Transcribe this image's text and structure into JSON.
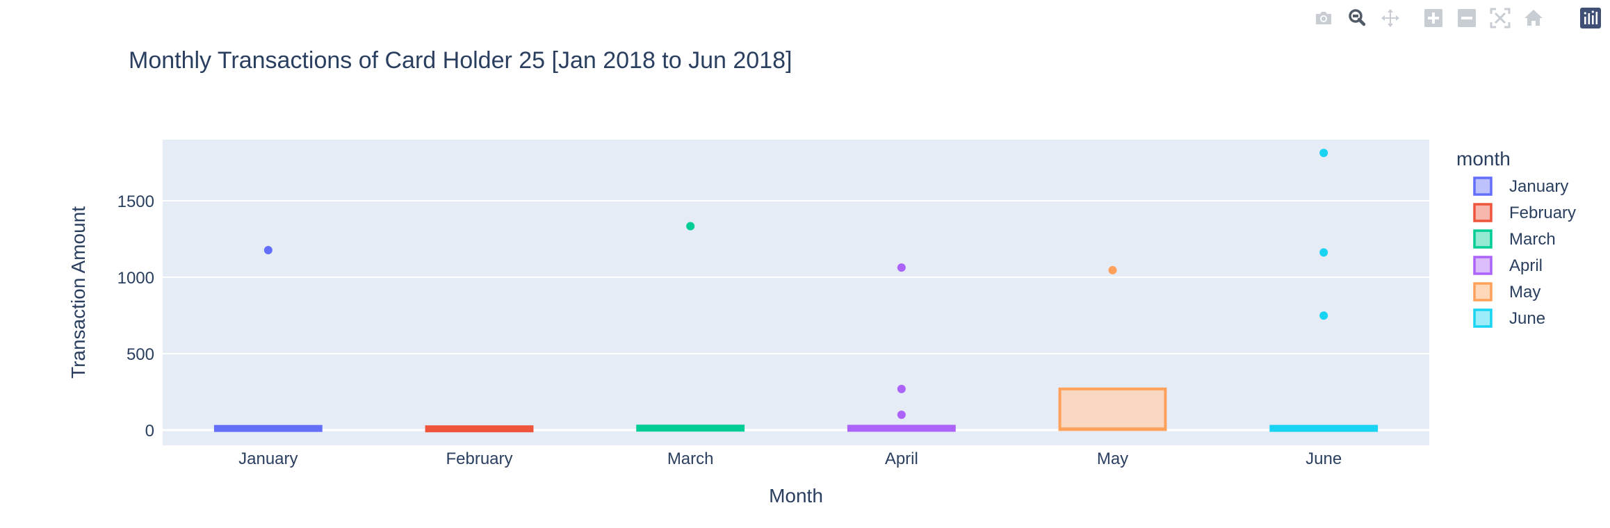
{
  "chart_data": {
    "type": "box",
    "title": "Monthly Transactions of Card Holder 25 [Jan 2018 to Jun 2018]",
    "xlabel": "Month",
    "ylabel": "Transaction Amount",
    "ylim": [
      -100,
      1900
    ],
    "yticks": [
      0,
      500,
      1000,
      1500
    ],
    "ytick_labels": [
      "0",
      "500",
      "1000",
      "1500"
    ],
    "grid": true,
    "legend": {
      "title": "month",
      "position": "right"
    },
    "categories": [
      "January",
      "February",
      "March",
      "April",
      "May",
      "June"
    ],
    "series": [
      {
        "name": "January",
        "color": "#636efa",
        "fill": "#b1b6fc",
        "box": {
          "q1": 3,
          "median": 10,
          "q3": 18,
          "whisker_low": 1,
          "whisker_high": 25
        },
        "outliers": [
          1177
        ]
      },
      {
        "name": "February",
        "color": "#EF553B",
        "fill": "#f7aa9d",
        "box": {
          "q1": 2,
          "median": 8,
          "q3": 14,
          "whisker_low": 1,
          "whisker_high": 20
        },
        "outliers": []
      },
      {
        "name": "March",
        "color": "#00cc96",
        "fill": "#80e5ca",
        "box": {
          "q1": 5,
          "median": 12,
          "q3": 20,
          "whisker_low": 1,
          "whisker_high": 25
        },
        "outliers": [
          1334
        ]
      },
      {
        "name": "April",
        "color": "#ab63fa",
        "fill": "#d5b1fc",
        "box": {
          "q1": 4,
          "median": 11,
          "q3": 19,
          "whisker_low": 1,
          "whisker_high": 25
        },
        "outliers": [
          1063,
          269,
          100
        ]
      },
      {
        "name": "May",
        "color": "#FFA15A",
        "fill": "#ffd0ad",
        "box": {
          "q1": 3,
          "median": 8,
          "q3": 269,
          "whisker_low": 1,
          "whisker_high": 269
        },
        "outliers": [
          1046
        ]
      },
      {
        "name": "June",
        "color": "#19d3f3",
        "fill": "#8ce9f9",
        "box": {
          "q1": 4,
          "median": 10,
          "q3": 18,
          "whisker_low": 1,
          "whisker_high": 25
        },
        "outliers": [
          1813,
          1162,
          749
        ]
      }
    ]
  },
  "modebar": {
    "buttons": [
      "camera-icon",
      "zoom-icon",
      "pan-icon",
      "zoom-in-icon",
      "zoom-out-icon",
      "autoscale-icon",
      "home-icon",
      "plotly-logo-icon"
    ]
  }
}
